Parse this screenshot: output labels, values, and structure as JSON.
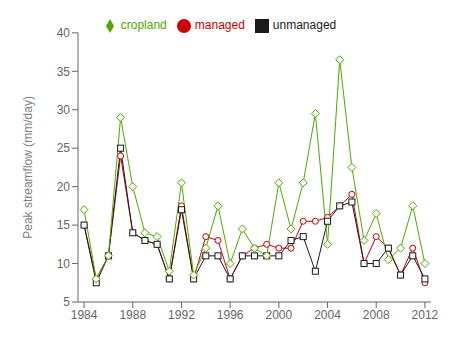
{
  "chart_data": {
    "type": "line",
    "x": [
      1984,
      1985,
      1986,
      1987,
      1988,
      1989,
      1990,
      1991,
      1992,
      1993,
      1994,
      1995,
      1996,
      1997,
      1998,
      1999,
      2000,
      2001,
      2002,
      2003,
      2004,
      2005,
      2006,
      2007,
      2008,
      2009,
      2010,
      2011,
      2012
    ],
    "series": [
      {
        "name": "managed",
        "color": "#cc0000",
        "marker": "circle",
        "values": [
          15.0,
          8.0,
          11.0,
          24.0,
          14.0,
          13.0,
          12.5,
          8.0,
          17.5,
          8.0,
          13.5,
          13.0,
          8.0,
          11.0,
          12.0,
          12.5,
          12.0,
          12.0,
          15.5,
          15.5,
          16.0,
          17.5,
          19.0,
          10.0,
          13.5,
          12.0,
          8.5,
          12.0,
          7.5
        ]
      },
      {
        "name": "unmanaged",
        "color": "#1a1a1a",
        "marker": "square",
        "values": [
          15.0,
          7.5,
          11.0,
          25.0,
          14.0,
          13.0,
          12.5,
          8.0,
          17.0,
          8.0,
          11.0,
          11.0,
          8.0,
          11.0,
          11.0,
          11.0,
          11.0,
          13.0,
          13.5,
          9.0,
          15.5,
          17.5,
          18.0,
          10.0,
          10.0,
          12.0,
          8.5,
          11.0,
          8.0
        ]
      },
      {
        "name": "cropland",
        "color": "#4daa00",
        "marker": "diamond",
        "values": [
          17.0,
          8.0,
          11.0,
          29.0,
          20.0,
          14.0,
          13.5,
          9.0,
          20.5,
          8.5,
          12.0,
          17.5,
          10.0,
          14.5,
          12.0,
          11.0,
          20.5,
          14.5,
          20.5,
          29.5,
          12.5,
          36.5,
          22.5,
          13.0,
          16.5,
          10.5,
          12.0,
          17.5,
          10.0
        ]
      }
    ],
    "ylabel": "Peak streamflow (mm/day)",
    "xlim": [
      1983.5,
      2012.5
    ],
    "ylim": [
      5,
      40
    ],
    "xticks": [
      1984,
      1988,
      1992,
      1996,
      2000,
      2004,
      2008,
      2012
    ],
    "yticks": [
      5,
      10,
      15,
      20,
      25,
      30,
      35,
      40
    ],
    "grid": false,
    "legend": "top"
  }
}
